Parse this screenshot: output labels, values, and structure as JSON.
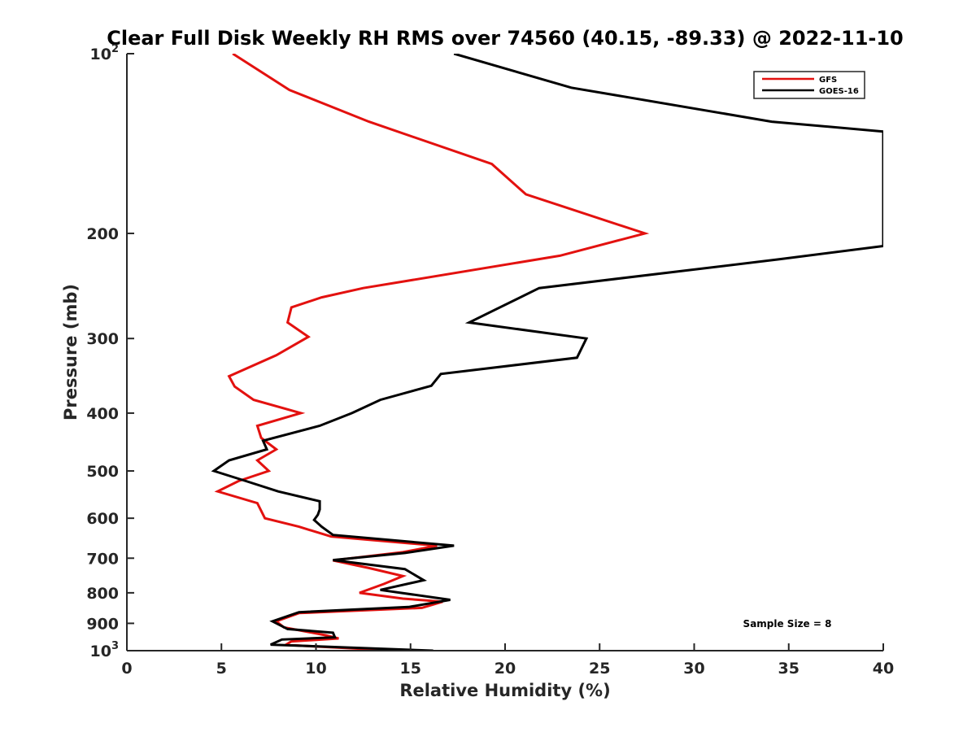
{
  "chart_data": {
    "type": "line",
    "title": "Clear Full Disk Weekly RH RMS over 74560 (40.15, -89.33) @ 2022-11-10",
    "xlabel": "Relative Humidity (%)",
    "ylabel": "Pressure (mb)",
    "xlim": [
      0,
      40
    ],
    "ylim": [
      100,
      1000
    ],
    "y_scale": "log",
    "y_reversed": true,
    "grid": false,
    "legend_position": "top-right",
    "x_ticks": [
      "0",
      "5",
      "10",
      "15",
      "20",
      "25",
      "30",
      "35",
      "40"
    ],
    "y_ticks": [
      {
        "value": 100,
        "base": "10",
        "exp": "2"
      },
      {
        "value": 200,
        "label": "200"
      },
      {
        "value": 300,
        "label": "300"
      },
      {
        "value": 400,
        "label": "400"
      },
      {
        "value": 500,
        "label": "500"
      },
      {
        "value": 600,
        "label": "600"
      },
      {
        "value": 700,
        "label": "700"
      },
      {
        "value": 800,
        "label": "800"
      },
      {
        "value": 900,
        "label": "900"
      },
      {
        "value": 1000,
        "base": "10",
        "exp": "3"
      }
    ],
    "annotation": "Sample Size = 8",
    "series": [
      {
        "name": "GFS",
        "color": "#e3110f",
        "points": [
          [
            5.6,
            100
          ],
          [
            8.6,
            115
          ],
          [
            12.8,
            130
          ],
          [
            19.3,
            153
          ],
          [
            21.1,
            172
          ],
          [
            27.4,
            200
          ],
          [
            22.9,
            218
          ],
          [
            12.5,
            247
          ],
          [
            10.3,
            256
          ],
          [
            8.7,
            266
          ],
          [
            8.5,
            282
          ],
          [
            9.6,
            298
          ],
          [
            7.9,
            320
          ],
          [
            5.4,
            347
          ],
          [
            5.7,
            361
          ],
          [
            6.7,
            380
          ],
          [
            9.2,
            400
          ],
          [
            6.9,
            420
          ],
          [
            7.1,
            440
          ],
          [
            7.9,
            460
          ],
          [
            6.9,
            480
          ],
          [
            7.5,
            500
          ],
          [
            5.9,
            520
          ],
          [
            4.8,
            541
          ],
          [
            6.9,
            566
          ],
          [
            7.3,
            600
          ],
          [
            9.1,
            620
          ],
          [
            10.8,
            644
          ],
          [
            16.4,
            667
          ],
          [
            14.6,
            684
          ],
          [
            10.9,
            706
          ],
          [
            12.8,
            727
          ],
          [
            14.6,
            750
          ],
          [
            13.6,
            773
          ],
          [
            12.3,
            800
          ],
          [
            14.6,
            818
          ],
          [
            16.7,
            828
          ],
          [
            15.6,
            848
          ],
          [
            9.1,
            865
          ],
          [
            7.9,
            893
          ],
          [
            8.3,
            914
          ],
          [
            10.5,
            942
          ],
          [
            11.2,
            954
          ],
          [
            8.7,
            965
          ],
          [
            8.4,
            978
          ],
          [
            14.3,
            1000
          ]
        ]
      },
      {
        "name": "GOES-16",
        "color": "#000000",
        "points": [
          [
            17.3,
            100
          ],
          [
            23.5,
            114
          ],
          [
            34.1,
            130
          ],
          [
            40.0,
            135
          ],
          [
            40.0,
            210
          ],
          [
            34.5,
            221
          ],
          [
            21.8,
            247
          ],
          [
            18.1,
            282
          ],
          [
            24.3,
            300
          ],
          [
            23.8,
            323
          ],
          [
            16.6,
            344
          ],
          [
            16.1,
            360
          ],
          [
            13.4,
            380
          ],
          [
            11.9,
            400
          ],
          [
            10.2,
            420
          ],
          [
            7.2,
            445
          ],
          [
            7.4,
            460
          ],
          [
            5.4,
            480
          ],
          [
            4.6,
            500
          ],
          [
            6.3,
            520
          ],
          [
            8.0,
            541
          ],
          [
            10.2,
            562
          ],
          [
            10.2,
            580
          ],
          [
            10.1,
            592
          ],
          [
            9.9,
            604
          ],
          [
            10.3,
            620
          ],
          [
            10.9,
            640
          ],
          [
            17.3,
            667
          ],
          [
            14.7,
            686
          ],
          [
            10.9,
            705
          ],
          [
            14.7,
            730
          ],
          [
            15.7,
            762
          ],
          [
            13.4,
            791
          ],
          [
            17.1,
            822
          ],
          [
            14.9,
            845
          ],
          [
            9.1,
            862
          ],
          [
            7.7,
            893
          ],
          [
            8.5,
            920
          ],
          [
            10.9,
            933
          ],
          [
            11.0,
            950
          ],
          [
            8.2,
            958
          ],
          [
            7.6,
            977
          ],
          [
            16.2,
            1000
          ]
        ]
      }
    ]
  }
}
